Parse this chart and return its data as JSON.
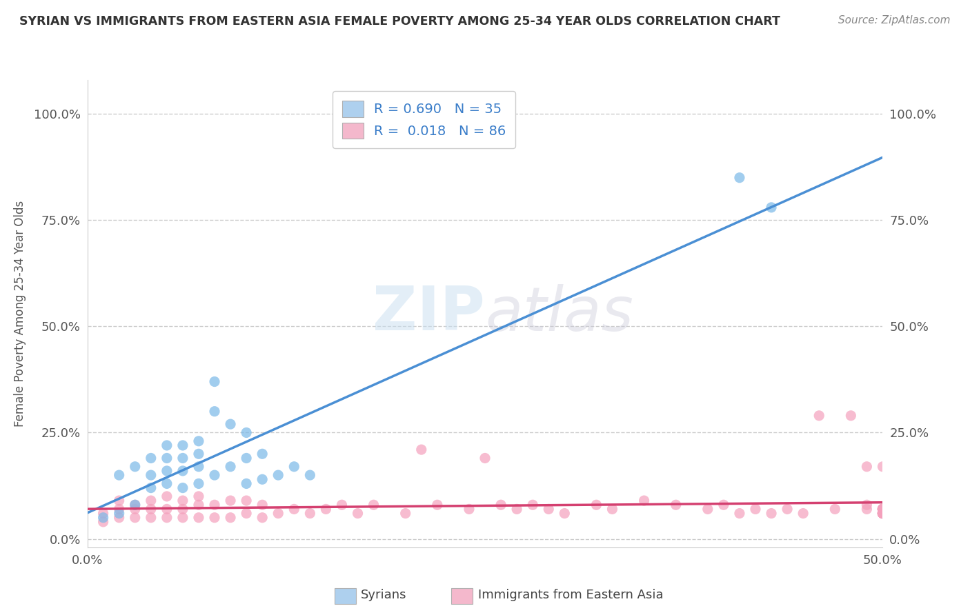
{
  "title": "SYRIAN VS IMMIGRANTS FROM EASTERN ASIA FEMALE POVERTY AMONG 25-34 YEAR OLDS CORRELATION CHART",
  "source": "Source: ZipAtlas.com",
  "ylabel": "Female Poverty Among 25-34 Year Olds",
  "xlim": [
    0.0,
    0.5
  ],
  "ylim": [
    -0.02,
    1.08
  ],
  "legend1_label": "R = 0.690   N = 35",
  "legend2_label": "R =  0.018   N = 86",
  "legend1_patch_color": "#aed0ee",
  "legend2_patch_color": "#f4b8cc",
  "scatter1_color": "#7ab8e8",
  "scatter2_color": "#f4a0bc",
  "line1_color": "#4a8fd4",
  "line2_color": "#d44070",
  "watermark_zip": "ZIP",
  "watermark_atlas": "atlas",
  "background_color": "#ffffff",
  "grid_color": "#cccccc",
  "title_color": "#333333",
  "tick_color": "#555555",
  "source_color": "#888888",
  "syrians_x": [
    0.01,
    0.02,
    0.02,
    0.03,
    0.03,
    0.04,
    0.04,
    0.04,
    0.05,
    0.05,
    0.05,
    0.05,
    0.06,
    0.06,
    0.06,
    0.06,
    0.07,
    0.07,
    0.07,
    0.07,
    0.08,
    0.08,
    0.08,
    0.09,
    0.09,
    0.1,
    0.1,
    0.1,
    0.11,
    0.11,
    0.12,
    0.13,
    0.14,
    0.41,
    0.43
  ],
  "syrians_y": [
    0.05,
    0.06,
    0.15,
    0.08,
    0.17,
    0.12,
    0.15,
    0.19,
    0.13,
    0.16,
    0.19,
    0.22,
    0.12,
    0.16,
    0.19,
    0.22,
    0.13,
    0.17,
    0.2,
    0.23,
    0.15,
    0.3,
    0.37,
    0.17,
    0.27,
    0.13,
    0.19,
    0.25,
    0.14,
    0.2,
    0.15,
    0.17,
    0.15,
    0.85,
    0.78
  ],
  "eastern_asia_x": [
    0.01,
    0.01,
    0.02,
    0.02,
    0.02,
    0.03,
    0.03,
    0.03,
    0.04,
    0.04,
    0.04,
    0.05,
    0.05,
    0.05,
    0.06,
    0.06,
    0.06,
    0.07,
    0.07,
    0.07,
    0.08,
    0.08,
    0.09,
    0.09,
    0.1,
    0.1,
    0.11,
    0.11,
    0.12,
    0.13,
    0.14,
    0.15,
    0.16,
    0.17,
    0.18,
    0.2,
    0.21,
    0.22,
    0.24,
    0.25,
    0.26,
    0.27,
    0.28,
    0.29,
    0.3,
    0.32,
    0.33,
    0.35,
    0.37,
    0.39,
    0.4,
    0.41,
    0.42,
    0.43,
    0.44,
    0.45,
    0.46,
    0.47,
    0.48,
    0.49,
    0.49,
    0.49,
    0.5,
    0.5,
    0.5,
    0.5,
    0.5,
    0.5,
    0.5,
    0.5,
    0.5,
    0.5,
    0.5,
    0.5,
    0.5,
    0.5,
    0.5,
    0.5,
    0.5,
    0.5,
    0.5,
    0.5,
    0.5,
    0.5,
    0.5,
    0.5
  ],
  "eastern_asia_y": [
    0.04,
    0.06,
    0.05,
    0.07,
    0.09,
    0.05,
    0.07,
    0.08,
    0.05,
    0.07,
    0.09,
    0.05,
    0.07,
    0.1,
    0.05,
    0.07,
    0.09,
    0.05,
    0.08,
    0.1,
    0.05,
    0.08,
    0.05,
    0.09,
    0.06,
    0.09,
    0.05,
    0.08,
    0.06,
    0.07,
    0.06,
    0.07,
    0.08,
    0.06,
    0.08,
    0.06,
    0.21,
    0.08,
    0.07,
    0.19,
    0.08,
    0.07,
    0.08,
    0.07,
    0.06,
    0.08,
    0.07,
    0.09,
    0.08,
    0.07,
    0.08,
    0.06,
    0.07,
    0.06,
    0.07,
    0.06,
    0.29,
    0.07,
    0.29,
    0.07,
    0.17,
    0.08,
    0.06,
    0.07,
    0.06,
    0.07,
    0.06,
    0.07,
    0.06,
    0.07,
    0.06,
    0.07,
    0.06,
    0.07,
    0.06,
    0.07,
    0.06,
    0.07,
    0.06,
    0.17,
    0.07,
    0.06,
    0.07,
    0.06,
    0.07,
    0.06
  ]
}
